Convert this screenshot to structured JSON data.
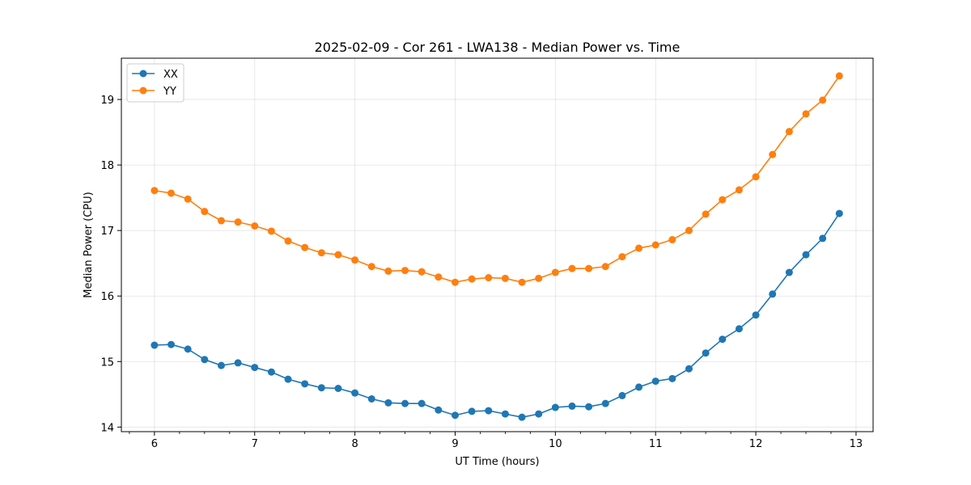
{
  "chart_data": {
    "type": "line",
    "title": "2025-02-09 - Cor 261 - LWA138 - Median Power vs. Time",
    "xlabel": "UT Time (hours)",
    "ylabel": "Median Power (CPU)",
    "xlim": [
      5.67,
      13.17
    ],
    "ylim": [
      13.93,
      19.63
    ],
    "xticks": [
      6,
      7,
      8,
      9,
      10,
      11,
      12,
      13
    ],
    "xtick_labels": [
      "6",
      "7",
      "8",
      "9",
      "10",
      "11",
      "12",
      "13"
    ],
    "x_minor_step": 0.25,
    "yticks": [
      14,
      15,
      16,
      17,
      18,
      19
    ],
    "ytick_labels": [
      "14",
      "15",
      "16",
      "17",
      "18",
      "19"
    ],
    "grid": true,
    "legend_position": "top-left",
    "x": [
      6.0,
      6.1667,
      6.3333,
      6.5,
      6.6667,
      6.8333,
      7.0,
      7.1667,
      7.3333,
      7.5,
      7.6667,
      7.8333,
      8.0,
      8.1667,
      8.3333,
      8.5,
      8.6667,
      8.8333,
      9.0,
      9.1667,
      9.3333,
      9.5,
      9.6667,
      9.8333,
      10.0,
      10.1667,
      10.3333,
      10.5,
      10.6667,
      10.8333,
      11.0,
      11.1667,
      11.3333,
      11.5,
      11.6667,
      11.8333,
      12.0,
      12.1667,
      12.3333,
      12.5,
      12.6667,
      12.8333
    ],
    "series": [
      {
        "name": "XX",
        "color": "#1f77b4",
        "values": [
          15.25,
          15.26,
          15.19,
          15.03,
          14.94,
          14.98,
          14.91,
          14.84,
          14.73,
          14.66,
          14.6,
          14.59,
          14.52,
          14.43,
          14.37,
          14.36,
          14.36,
          14.26,
          14.18,
          14.24,
          14.25,
          14.2,
          14.15,
          14.2,
          14.3,
          14.32,
          14.31,
          14.36,
          14.48,
          14.61,
          14.7,
          14.74,
          14.89,
          15.13,
          15.34,
          15.5,
          15.71,
          16.03,
          16.36,
          16.63,
          16.88,
          17.26
        ]
      },
      {
        "name": "YY",
        "color": "#ff7f0e",
        "values": [
          17.61,
          17.57,
          17.48,
          17.29,
          17.15,
          17.13,
          17.07,
          16.99,
          16.84,
          16.74,
          16.66,
          16.63,
          16.55,
          16.45,
          16.38,
          16.39,
          16.37,
          16.29,
          16.21,
          16.26,
          16.28,
          16.27,
          16.21,
          16.27,
          16.36,
          16.42,
          16.42,
          16.45,
          16.6,
          16.73,
          16.78,
          16.86,
          17.0,
          17.25,
          17.47,
          17.62,
          17.82,
          18.16,
          18.51,
          18.78,
          18.99,
          19.36
        ]
      }
    ]
  }
}
